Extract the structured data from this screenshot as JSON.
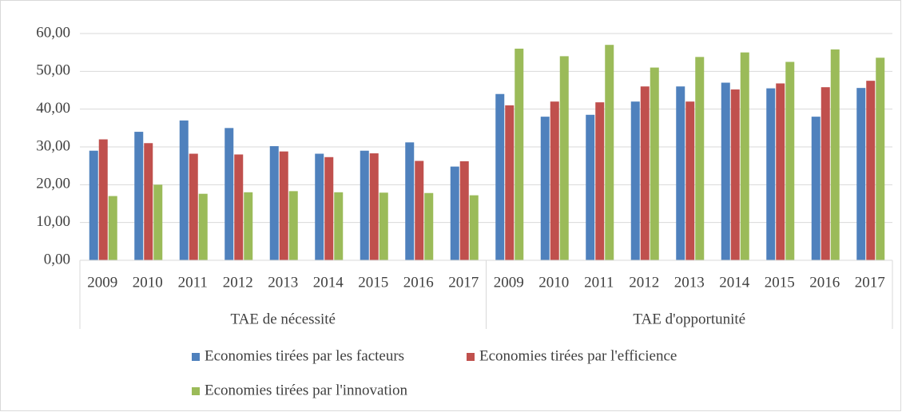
{
  "chart_data": {
    "type": "bar",
    "category_groups": [
      {
        "label": "TAE de nécessité",
        "categories": [
          "2009",
          "2010",
          "2011",
          "2012",
          "2013",
          "2014",
          "2015",
          "2016",
          "2017"
        ]
      },
      {
        "label": "TAE d'opportunité",
        "categories": [
          "2009",
          "2010",
          "2011",
          "2012",
          "2013",
          "2014",
          "2015",
          "2016",
          "2017"
        ]
      }
    ],
    "series": [
      {
        "name": "Economies tirées par les facteurs",
        "color": "#4f81bd",
        "values": [
          29,
          34,
          37,
          35,
          30.2,
          28.2,
          29,
          31.2,
          24.8,
          44,
          38,
          38.5,
          42,
          46,
          47,
          45.5,
          38,
          45.6
        ]
      },
      {
        "name": "Economies tirées par l'efficience",
        "color": "#c0504d",
        "values": [
          32,
          31,
          28.2,
          28,
          28.8,
          27.3,
          28.3,
          26.3,
          26.2,
          41,
          42,
          41.8,
          46,
          42,
          45.2,
          46.8,
          45.8,
          47.5
        ]
      },
      {
        "name": "Economies tirées par l'innovation",
        "color": "#9bbb59",
        "values": [
          17,
          20,
          17.6,
          18,
          18.3,
          18,
          17.9,
          17.8,
          17.2,
          56,
          54,
          57,
          51,
          53.8,
          55,
          52.5,
          55.8,
          53.6
        ]
      }
    ],
    "ylim": [
      0,
      60
    ],
    "yticks": [
      {
        "value": 0,
        "label": "0,00"
      },
      {
        "value": 10,
        "label": "10,00"
      },
      {
        "value": 20,
        "label": "20,00"
      },
      {
        "value": 30,
        "label": "30,00"
      },
      {
        "value": 40,
        "label": "40,00"
      },
      {
        "value": 50,
        "label": "50,00"
      },
      {
        "value": 60,
        "label": "60,00"
      }
    ],
    "grid": true
  }
}
